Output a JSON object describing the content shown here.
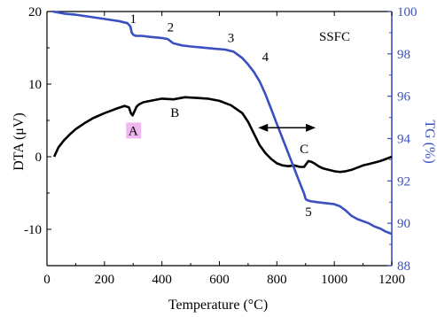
{
  "chart_data": {
    "type": "line",
    "title": "",
    "xlabel": "Temperature (°C)",
    "ylabel_left": "DTA (μV)",
    "ylabel_right": "TG (%)",
    "xlim": [
      0,
      1200
    ],
    "ylim_left": [
      -15,
      20
    ],
    "ylim_right": [
      88,
      100
    ],
    "x_ticks": [
      0,
      200,
      400,
      600,
      800,
      1000,
      1200
    ],
    "y_left_ticks": [
      -10,
      0,
      10,
      20
    ],
    "y_right_ticks": [
      88,
      90,
      92,
      94,
      96,
      98,
      100
    ],
    "grid": false,
    "colors": {
      "dta": "#000000",
      "tg": "#3a4fc0",
      "right_axis": "#3a4fc0",
      "highlight": "#f0b8f0"
    },
    "series": [
      {
        "axis": "left",
        "color": "#000000",
        "x": [
          25,
          40,
          60,
          80,
          100,
          130,
          160,
          200,
          240,
          270,
          285,
          292,
          298,
          305,
          312,
          320,
          335,
          360,
          400,
          440,
          480,
          520,
          560,
          600,
          640,
          680,
          700,
          720,
          740,
          760,
          780,
          800,
          820,
          840,
          860,
          880,
          895,
          902,
          910,
          920,
          930,
          945,
          960,
          980,
          1000,
          1020,
          1040,
          1060,
          1080,
          1100,
          1120,
          1140,
          1160,
          1180,
          1200
        ],
        "y": [
          0,
          1.3,
          2.3,
          3.1,
          3.8,
          4.6,
          5.3,
          6.0,
          6.6,
          7.0,
          6.8,
          6.0,
          5.7,
          6.3,
          6.9,
          7.2,
          7.5,
          7.7,
          8.0,
          7.9,
          8.2,
          8.1,
          8.0,
          7.7,
          7.1,
          6.0,
          4.8,
          3.2,
          1.6,
          0.5,
          -0.3,
          -0.9,
          -1.2,
          -1.3,
          -1.2,
          -1.4,
          -1.4,
          -1.0,
          -0.6,
          -0.7,
          -0.9,
          -1.3,
          -1.6,
          -1.8,
          -2.0,
          -2.1,
          -2.0,
          -1.8,
          -1.5,
          -1.2,
          -1.0,
          -0.8,
          -0.6,
          -0.3,
          0.0
        ]
      },
      {
        "axis": "right",
        "color": "#3a4fc0",
        "x": [
          20,
          60,
          100,
          150,
          200,
          250,
          280,
          290,
          295,
          300,
          310,
          330,
          360,
          400,
          420,
          440,
          470,
          500,
          540,
          580,
          620,
          650,
          680,
          700,
          720,
          740,
          760,
          780,
          800,
          820,
          840,
          860,
          880,
          895,
          900,
          905,
          915,
          940,
          970,
          1000,
          1020,
          1040,
          1060,
          1080,
          1100,
          1120,
          1140,
          1160,
          1180,
          1200
        ],
        "y": [
          100,
          99.9,
          99.85,
          99.75,
          99.65,
          99.55,
          99.45,
          99.3,
          99.0,
          98.9,
          98.85,
          98.85,
          98.8,
          98.75,
          98.7,
          98.5,
          98.4,
          98.35,
          98.3,
          98.25,
          98.2,
          98.1,
          97.8,
          97.5,
          97.15,
          96.7,
          96.1,
          95.4,
          94.7,
          94.0,
          93.3,
          92.6,
          91.9,
          91.4,
          91.15,
          91.1,
          91.05,
          91.0,
          90.95,
          90.9,
          90.8,
          90.6,
          90.35,
          90.2,
          90.1,
          90.0,
          89.85,
          89.75,
          89.6,
          89.5
        ]
      }
    ],
    "annotations": [
      {
        "text": "1",
        "x": 300,
        "axis": "right",
        "y": 99.45
      },
      {
        "text": "2",
        "x": 430,
        "axis": "right",
        "y": 99.05
      },
      {
        "text": "3",
        "x": 640,
        "axis": "right",
        "y": 98.55
      },
      {
        "text": "4",
        "x": 760,
        "axis": "right",
        "y": 97.65
      },
      {
        "text": "5",
        "x": 910,
        "axis": "right",
        "y": 90.35
      },
      {
        "text": "A",
        "x": 300,
        "axis": "left",
        "y": 3.0
      },
      {
        "text": "B",
        "x": 445,
        "axis": "left",
        "y": 5.5
      },
      {
        "text": "C",
        "x": 895,
        "axis": "left",
        "y": 0.5
      }
    ],
    "legend_label": "SSFC",
    "arrow": {
      "x_from": 735,
      "x_to": 935,
      "axis": "left",
      "y": 4.0
    }
  }
}
